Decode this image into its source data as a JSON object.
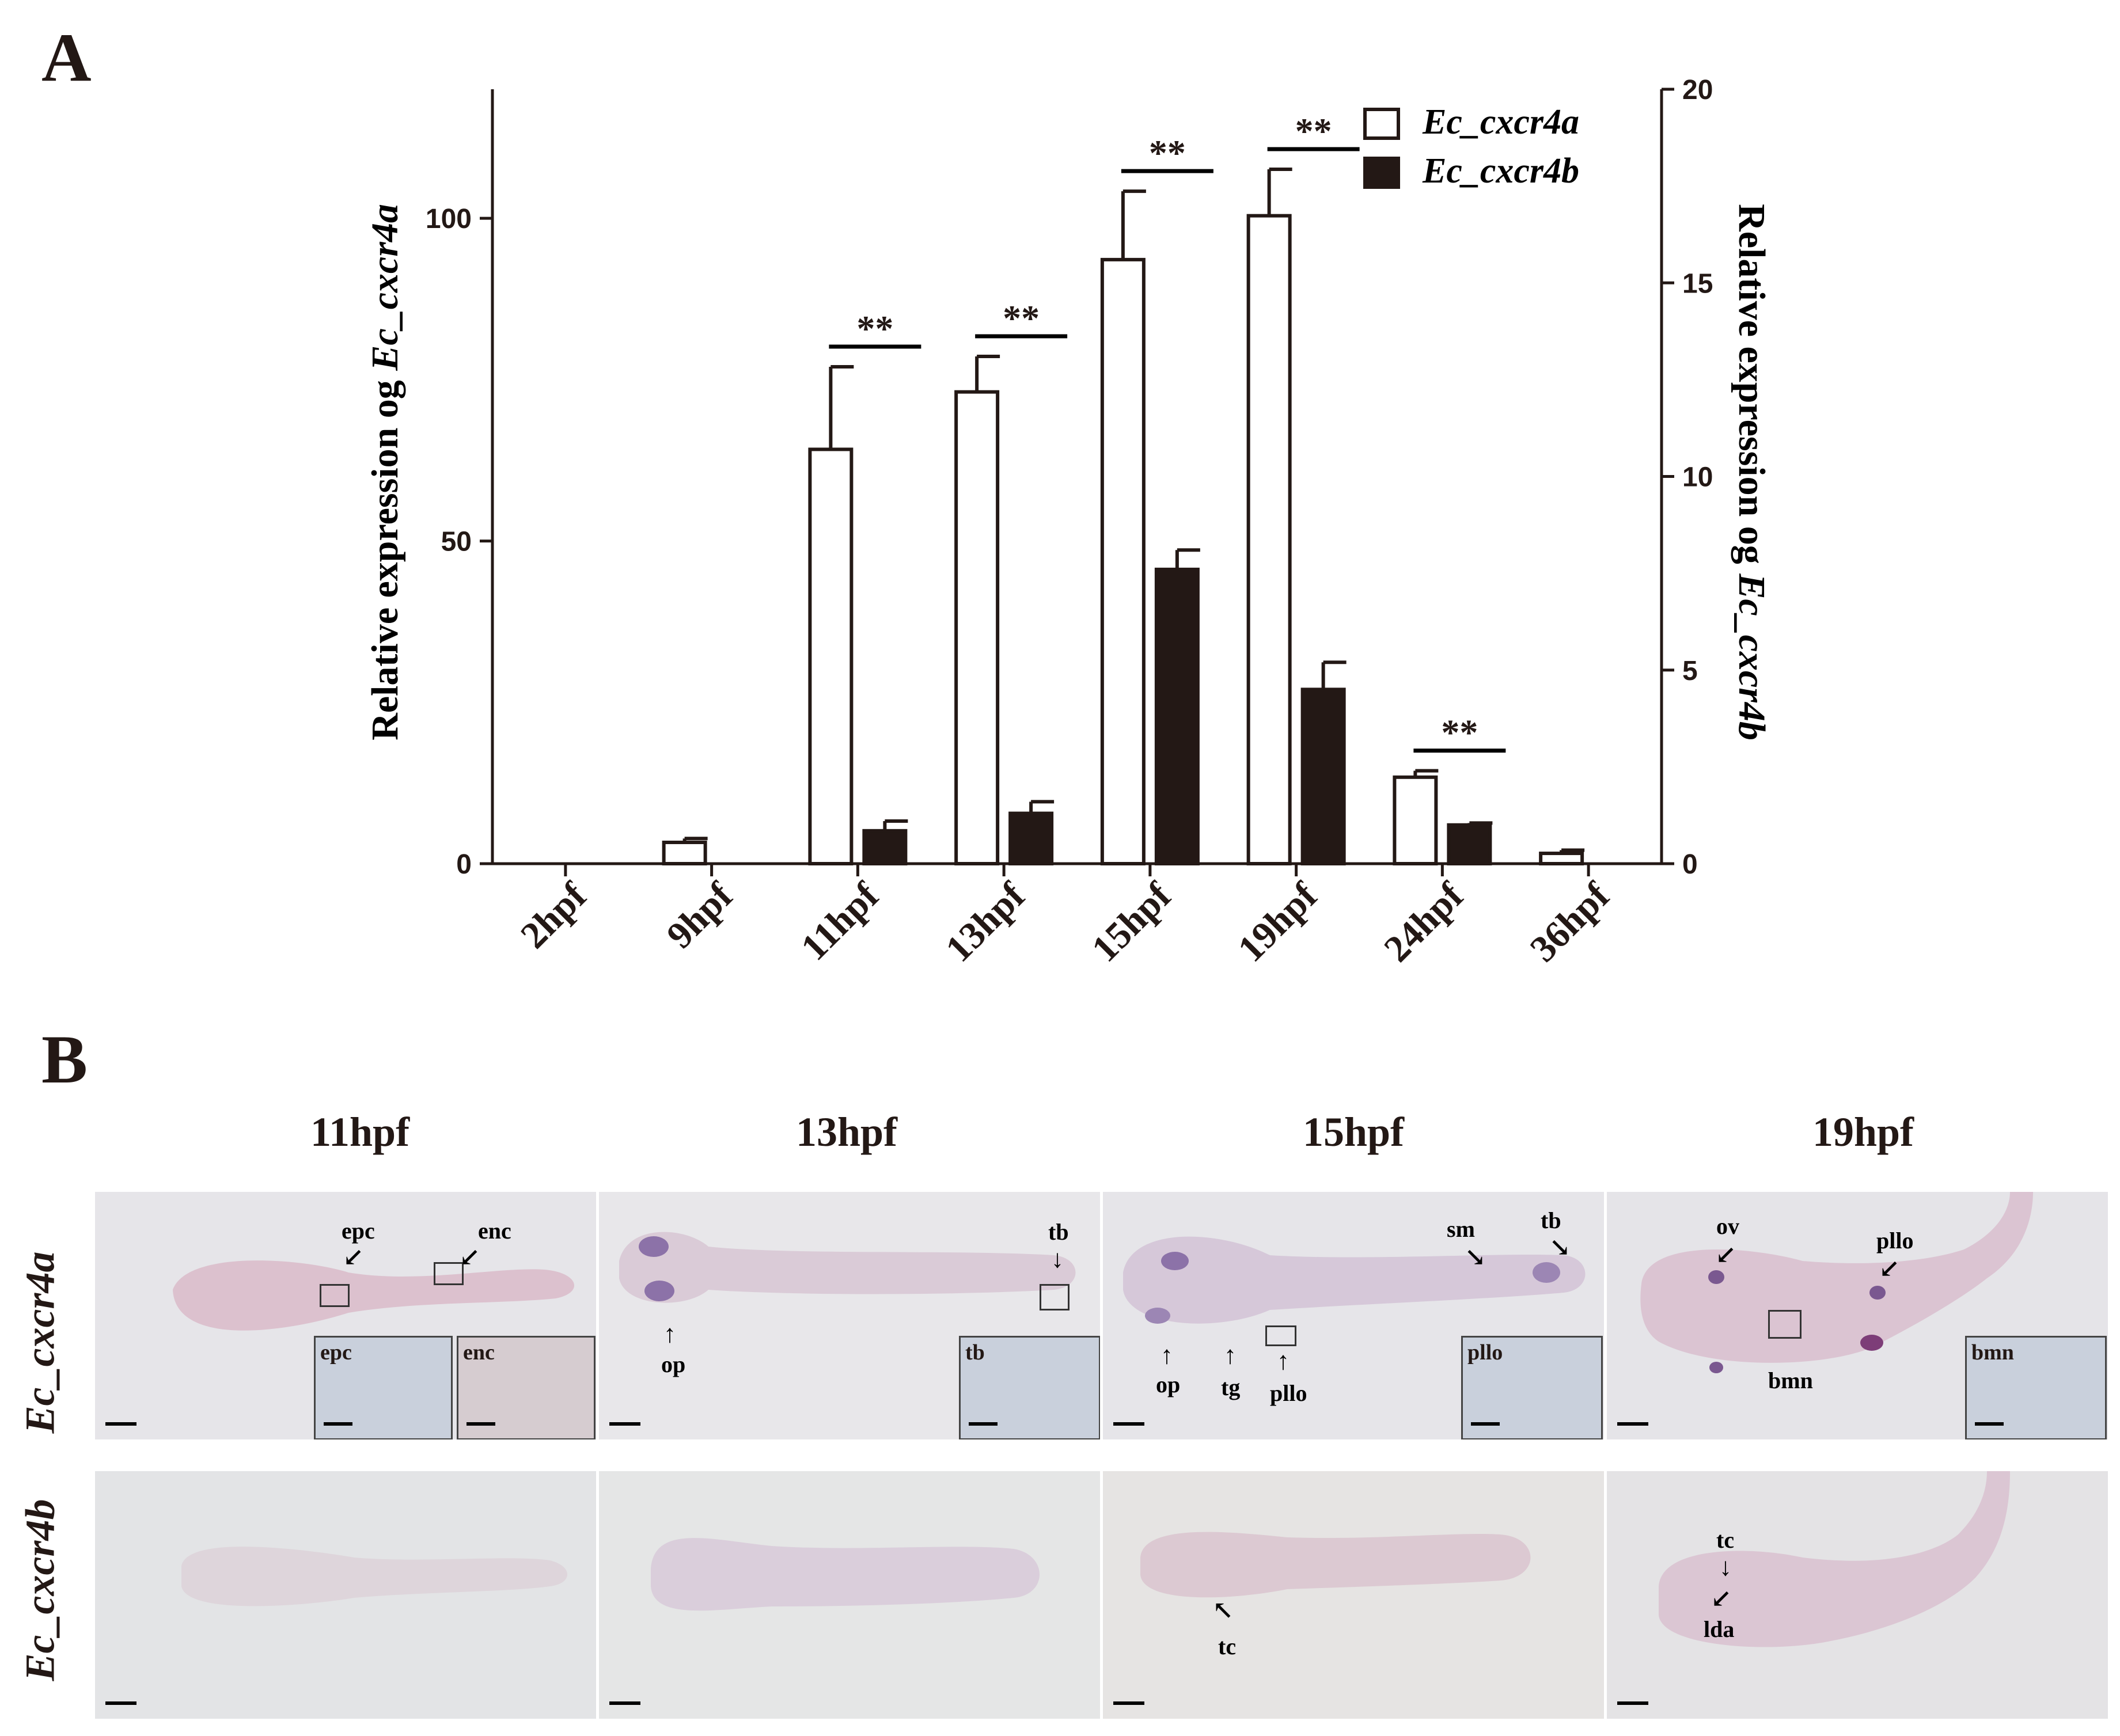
{
  "panel_a": {
    "label": "A"
  },
  "panel_b": {
    "label": "B"
  },
  "chart_data": {
    "type": "bar",
    "categories": [
      "2hpf",
      "9hpf",
      "11hpf",
      "13hpf",
      "15hpf",
      "19hpf",
      "24hpf",
      "36hpf"
    ],
    "series": [
      {
        "name": "Ec_cxcr4a",
        "axis": "left",
        "fill": "#ffffff",
        "stroke": "#231815",
        "values": [
          0,
          3.3,
          64.2,
          73.1,
          93.6,
          100.4,
          13.4,
          1.6
        ],
        "errors": [
          0,
          0.6,
          12.8,
          5.5,
          10.6,
          7.2,
          1.0,
          0.5
        ]
      },
      {
        "name": "Ec_cxcr4b",
        "axis": "right",
        "fill": "#231815",
        "stroke": "#231815",
        "values": [
          0,
          0,
          0.85,
          1.3,
          7.6,
          4.5,
          1.0,
          0
        ],
        "errors": [
          0,
          0,
          0.25,
          0.3,
          0.5,
          0.7,
          0.05,
          0
        ]
      }
    ],
    "left_axis": {
      "label_prefix": "Relative expression og ",
      "label_gene": "Ec_cxcr4a",
      "ticks": [
        0,
        50,
        100
      ],
      "ylim": [
        0,
        120
      ]
    },
    "right_axis": {
      "label_prefix": "Relative expression og ",
      "label_gene": "Ec_cxcr4b",
      "ticks": [
        0,
        5,
        10,
        15,
        20
      ],
      "ylim": [
        0,
        20
      ]
    },
    "significance": [
      {
        "category": "11hpf",
        "text": "**"
      },
      {
        "category": "13hpf",
        "text": "**"
      },
      {
        "category": "15hpf",
        "text": "**"
      },
      {
        "category": "19hpf",
        "text": "**"
      },
      {
        "category": "24hpf",
        "text": "**"
      }
    ],
    "legend": {
      "position": "top-right",
      "entries": [
        "Ec_cxcr4a",
        "Ec_cxcr4b"
      ]
    },
    "grid": false
  },
  "images": {
    "column_labels": [
      "11hpf",
      "13hpf",
      "15hpf",
      "19hpf"
    ],
    "row_labels": [
      "Ec_cxcr4a",
      "Ec_cxcr4b"
    ],
    "annotations": {
      "r1c1": [
        "epc",
        "enc"
      ],
      "r1c2": [
        "tb",
        "op"
      ],
      "r1c3": [
        "sm",
        "tb",
        "op",
        "tg",
        "pllo"
      ],
      "r1c4": [
        "ov",
        "pllo",
        "bmn"
      ],
      "r2c3": [
        "tc"
      ],
      "r2c4": [
        "tc",
        "lda"
      ]
    },
    "insets": {
      "r1c1": [
        "epc",
        "enc"
      ],
      "r1c2": [
        "tb"
      ],
      "r1c3": [
        "pllo"
      ],
      "r1c4": [
        "bmn"
      ]
    }
  }
}
